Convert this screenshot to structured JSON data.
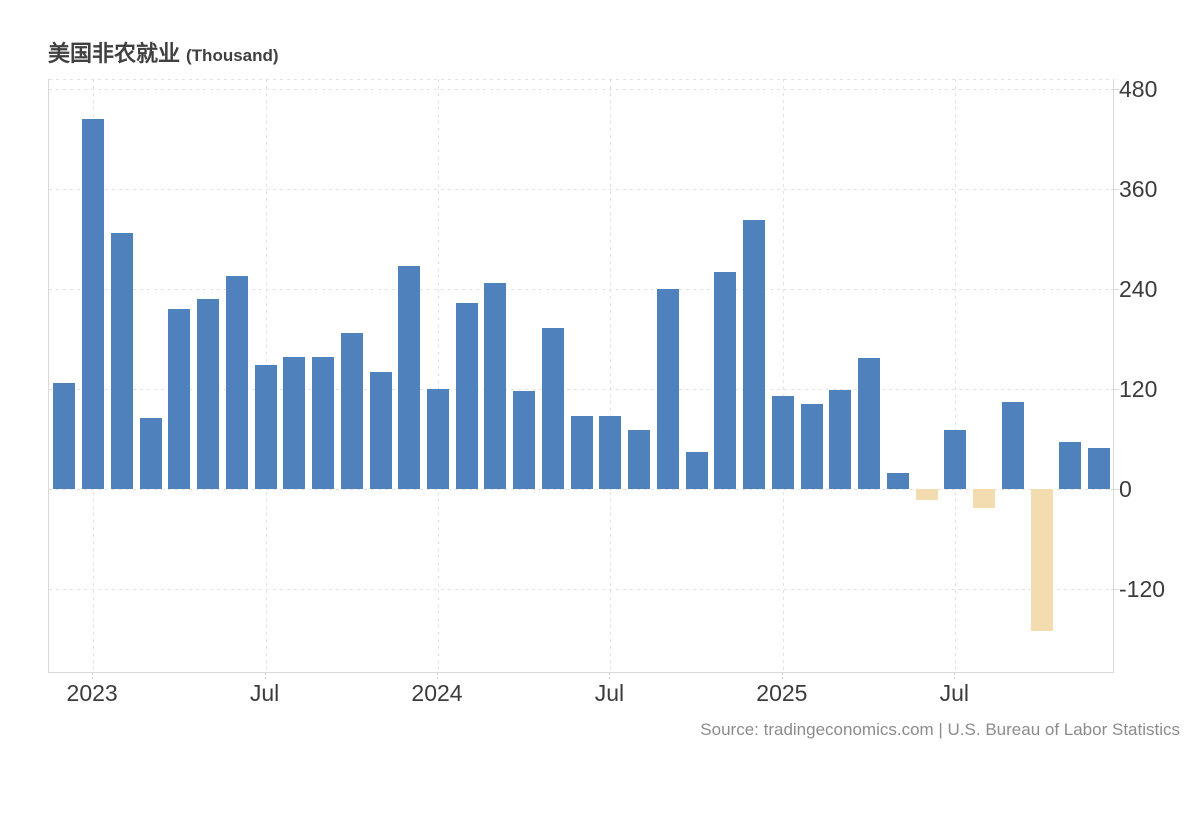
{
  "title": {
    "main": "美国非农就业",
    "suffix": "(Thousand)"
  },
  "source_text": "Source: tradingeconomics.com | U.S. Bureau of Labor Statistics",
  "colors": {
    "positive_bar": "#4f81bc",
    "negative_bar": "#f3ddb0",
    "grid": "#e2e2e2",
    "axis": "#d9d9d9",
    "tick_label": "#3c3c3c",
    "title_text": "#404040",
    "source_text": "#8c8c8c"
  },
  "chart_data": {
    "type": "bar",
    "title": "美国非农就业 (Thousand)",
    "ylabel": "",
    "xlabel": "",
    "grid": true,
    "legend": "none",
    "y_axis_side": "right",
    "ylim": [
      -220,
      492
    ],
    "yticks": [
      480,
      360,
      240,
      120,
      0,
      -120
    ],
    "x": [
      "2022-12",
      "2023-01",
      "2023-02",
      "2023-03",
      "2023-04",
      "2023-05",
      "2023-06",
      "2023-07",
      "2023-08",
      "2023-09",
      "2023-10",
      "2023-11",
      "2023-12",
      "2024-01",
      "2024-02",
      "2024-03",
      "2024-04",
      "2024-05",
      "2024-06",
      "2024-07",
      "2024-08",
      "2024-09",
      "2024-10",
      "2024-11",
      "2024-12",
      "2025-01",
      "2025-02",
      "2025-03",
      "2025-04",
      "2025-05",
      "2025-06",
      "2025-07",
      "2025-08",
      "2025-09",
      "2025-10",
      "2025-11",
      "2025-12"
    ],
    "values": [
      127,
      444,
      307,
      85,
      216,
      228,
      256,
      149,
      158,
      158,
      187,
      140,
      268,
      120,
      223,
      247,
      118,
      193,
      88,
      88,
      71,
      240,
      44,
      260,
      323,
      112,
      102,
      119,
      157,
      19,
      -13,
      71,
      -23,
      105,
      -170,
      56,
      49
    ],
    "xticks": [
      {
        "label": "2023",
        "index": 1
      },
      {
        "label": "Jul",
        "index": 7
      },
      {
        "label": "2024",
        "index": 13
      },
      {
        "label": "Jul",
        "index": 19
      },
      {
        "label": "2025",
        "index": 25
      },
      {
        "label": "Jul",
        "index": 31
      }
    ]
  }
}
